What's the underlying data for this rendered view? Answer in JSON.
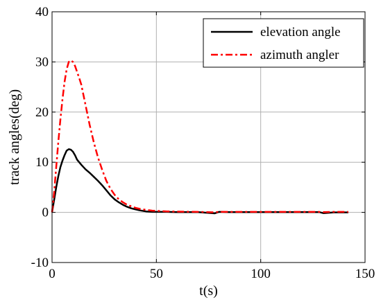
{
  "chart_data": {
    "type": "line",
    "xlabel": "t(s)",
    "ylabel": "track angles(deg)",
    "xlim": [
      0,
      150
    ],
    "ylim": [
      -10,
      40
    ],
    "xticks": [
      0,
      50,
      100,
      150
    ],
    "yticks": [
      -10,
      0,
      10,
      20,
      30,
      40
    ],
    "xtick_labels": [
      "0",
      "50",
      "100",
      "150"
    ],
    "ytick_labels": [
      "-10",
      "0",
      "10",
      "20",
      "30",
      "40"
    ],
    "grid": true,
    "legend_position": "top-right",
    "series": [
      {
        "name": "elevation angle",
        "color": "#000000",
        "style": "solid",
        "x": [
          0,
          1,
          2,
          3,
          4,
          5,
          6,
          7,
          8,
          9,
          10,
          11,
          12,
          14,
          16,
          18,
          20,
          22,
          24,
          26,
          28,
          30,
          32,
          34,
          36,
          38,
          40,
          42,
          45,
          48,
          50,
          55,
          60,
          70,
          78,
          80,
          85,
          90,
          100,
          110,
          120,
          128,
          130,
          135,
          140,
          142
        ],
        "y": [
          0,
          2.5,
          5,
          7.2,
          9,
          10.3,
          11.4,
          12.3,
          12.6,
          12.5,
          12.1,
          11.4,
          10.5,
          9.5,
          8.6,
          7.9,
          7.1,
          6.3,
          5.4,
          4.4,
          3.4,
          2.6,
          2.0,
          1.5,
          1.1,
          0.8,
          0.6,
          0.4,
          0.2,
          0.1,
          0.1,
          0.1,
          0.05,
          0.05,
          -0.2,
          0.1,
          0.05,
          0.05,
          0.05,
          0.05,
          0.05,
          0.05,
          -0.15,
          0,
          0,
          0
        ]
      },
      {
        "name": "azimuth angler",
        "color": "#ff0000",
        "style": "dashdot",
        "x": [
          0,
          1,
          2,
          3,
          4,
          5,
          6,
          7,
          8,
          9,
          10,
          11,
          12,
          13,
          14,
          15,
          16,
          17,
          18,
          20,
          22,
          24,
          26,
          28,
          30,
          32,
          34,
          36,
          38,
          40,
          42,
          45,
          48,
          50,
          55,
          60,
          70,
          78,
          80,
          85,
          90,
          100,
          110,
          120,
          128,
          130,
          135,
          140,
          142
        ],
        "y": [
          0,
          4,
          9,
          14,
          18.5,
          22.5,
          26,
          28.5,
          30,
          30.3,
          30,
          29.2,
          28,
          26.8,
          25.5,
          23.5,
          21.5,
          19.5,
          17.5,
          14,
          11,
          8.5,
          6.3,
          4.7,
          3.5,
          2.6,
          2.0,
          1.5,
          1.2,
          0.9,
          0.7,
          0.5,
          0.35,
          0.3,
          0.2,
          0.15,
          0.1,
          0,
          0.1,
          0.1,
          0.1,
          0.1,
          0.1,
          0.1,
          0.1,
          0.05,
          0.1,
          0.1,
          0.1
        ]
      }
    ]
  }
}
